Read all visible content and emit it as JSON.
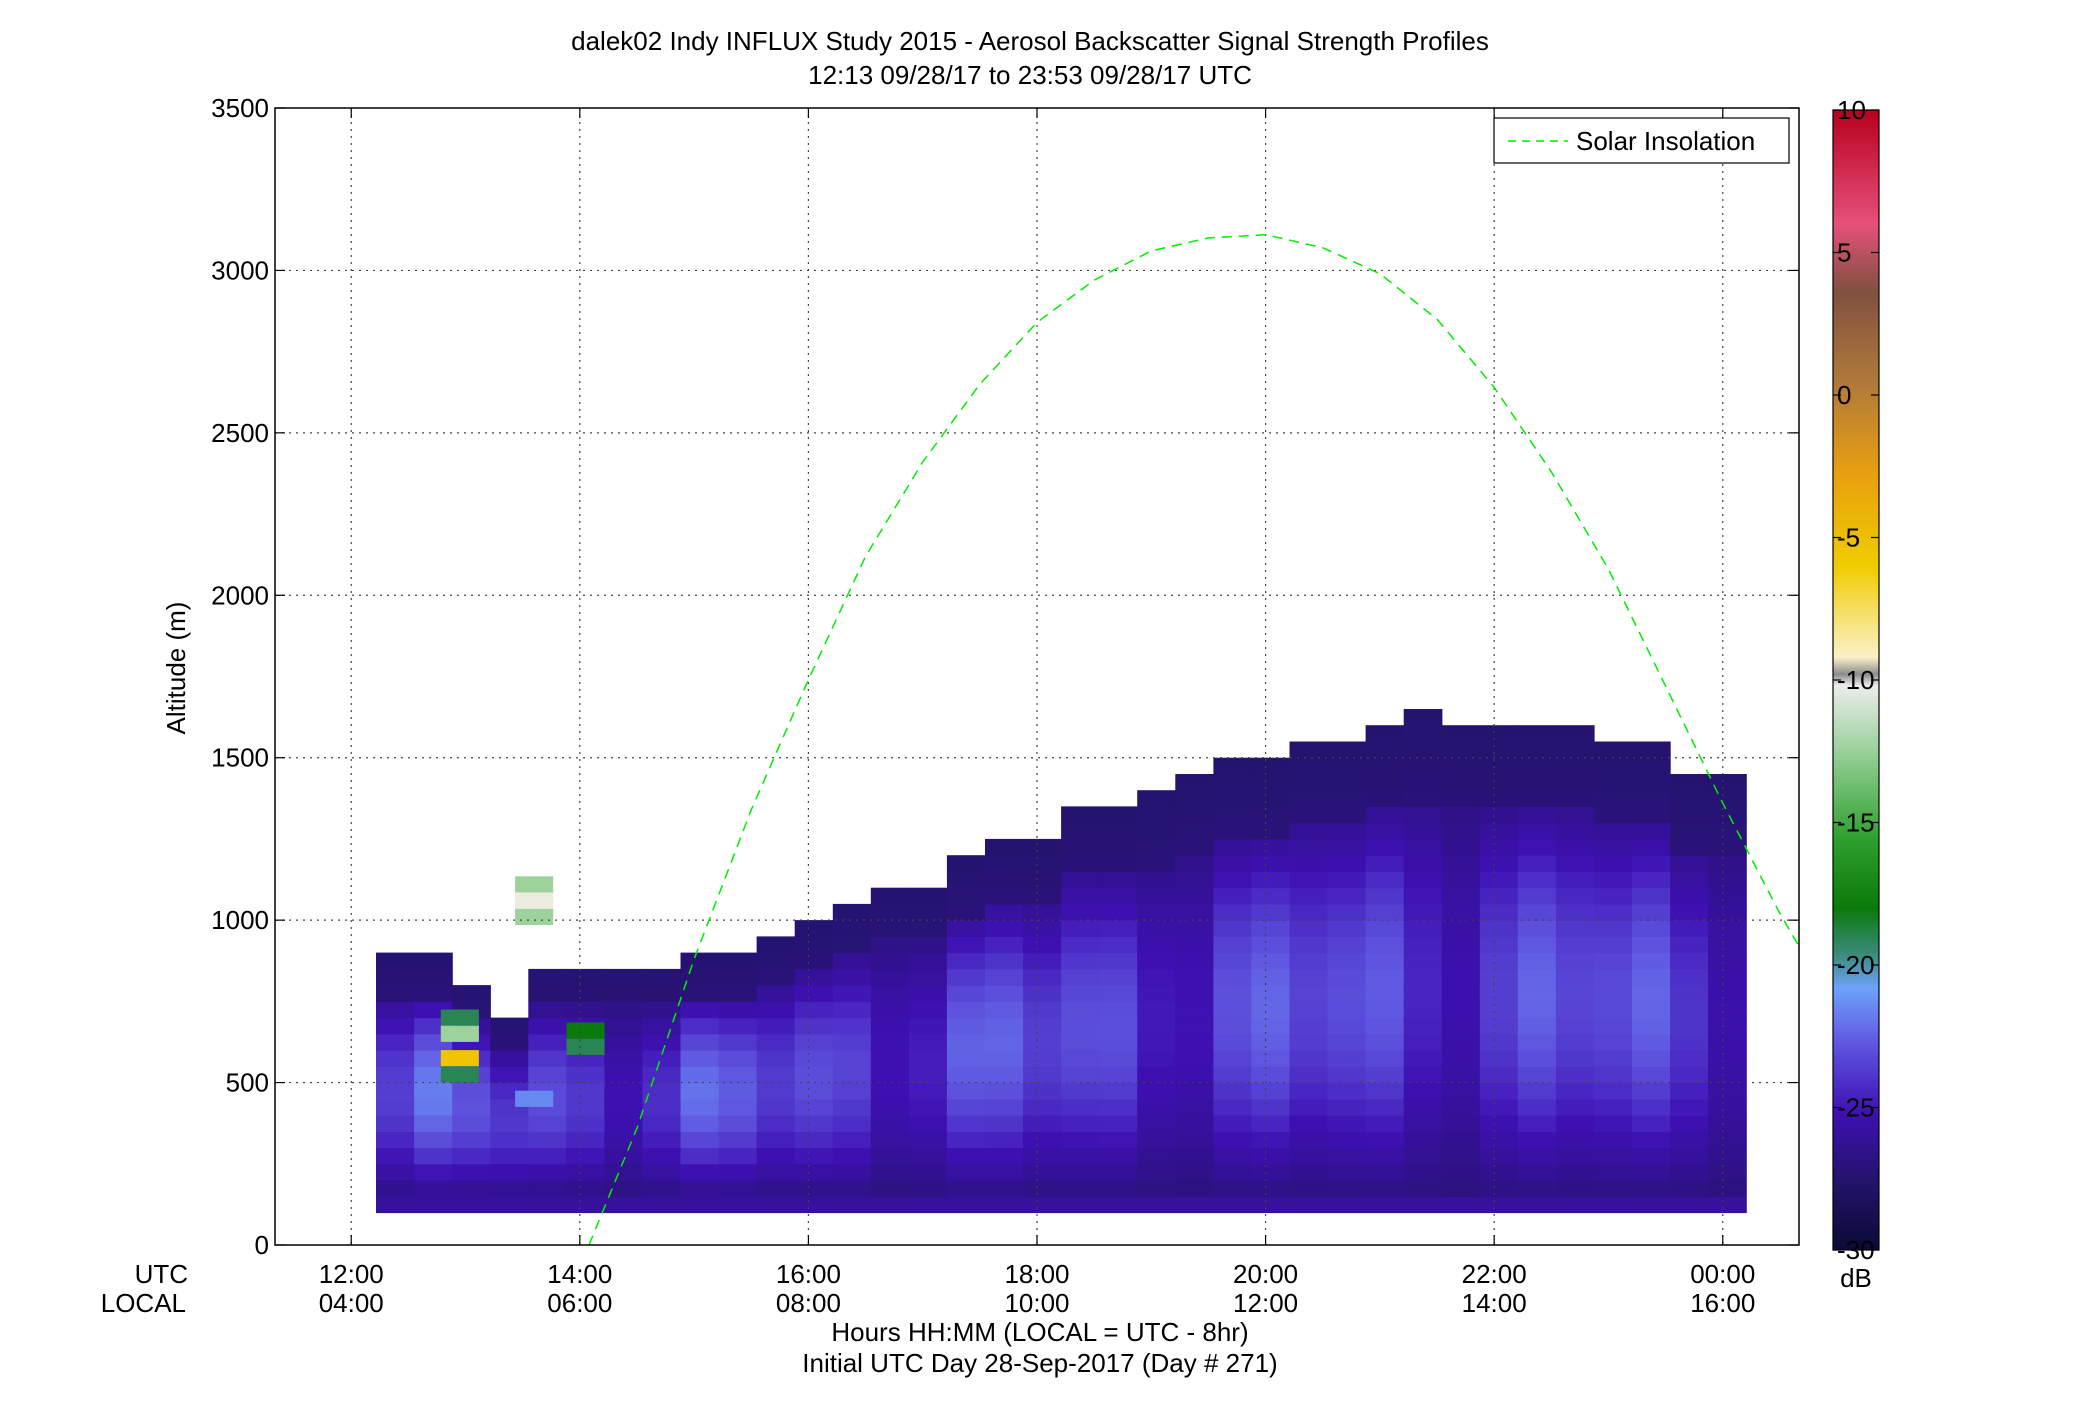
{
  "chart_data": {
    "type": "heatmap",
    "title": "dalek02 Indy INFLUX Study 2015 - Aerosol Backscatter Signal Strength Profiles",
    "subtitle": "12:13 09/28/17 to 23:53 09/28/17  UTC",
    "ylabel": "Altitude (m)",
    "xlabel": "Hours HH:MM  (LOCAL = UTC - 8hr)",
    "xlabel2": "Initial UTC Day 28-Sep-2017 (Day # 271)",
    "row_label_utc": "UTC",
    "row_label_local": "LOCAL",
    "xlim": [
      11.333,
      24.667
    ],
    "ylim": [
      0,
      3500
    ],
    "y_ticks": [
      0,
      500,
      1000,
      1500,
      2000,
      2500,
      3000,
      3500
    ],
    "x_ticks": [
      {
        "x": 12,
        "utc": "12:00",
        "local": "04:00"
      },
      {
        "x": 14,
        "utc": "14:00",
        "local": "06:00"
      },
      {
        "x": 16,
        "utc": "16:00",
        "local": "08:00"
      },
      {
        "x": 18,
        "utc": "18:00",
        "local": "10:00"
      },
      {
        "x": 20,
        "utc": "20:00",
        "local": "12:00"
      },
      {
        "x": 22,
        "utc": "22:00",
        "local": "14:00"
      },
      {
        "x": 24,
        "utc": "00:00",
        "local": "16:00"
      }
    ],
    "grid": true,
    "legend": {
      "position": "top-right",
      "entries": [
        {
          "name": "Solar Insolation",
          "color": "#00ee00",
          "style": "dashed"
        }
      ]
    },
    "colorbar": {
      "label": "dB",
      "range": [
        -30,
        10
      ],
      "ticks": [
        -30,
        -25,
        -20,
        -15,
        -10,
        -5,
        0,
        5,
        10
      ]
    },
    "bin_width_hours": 0.333,
    "bin_height_m": 50,
    "base_altitude_m": 100,
    "column_tops_m": [
      900,
      900,
      800,
      700,
      850,
      850,
      850,
      850,
      900,
      900,
      950,
      1000,
      1050,
      1100,
      1100,
      1200,
      1250,
      1250,
      1350,
      1350,
      1400,
      1450,
      1500,
      1500,
      1550,
      1550,
      1600,
      1650,
      1600,
      1600,
      1600,
      1600,
      1550,
      1550,
      1450,
      1450
    ],
    "column_start_hour": 12.217,
    "signal_low_db": -27,
    "signal_high_db": -22,
    "outliers": [
      {
        "x": 12.95,
        "y": 700,
        "db": -20
      },
      {
        "x": 12.95,
        "y": 650,
        "db": -13
      },
      {
        "x": 12.95,
        "y": 575,
        "db": -5
      },
      {
        "x": 12.95,
        "y": 525,
        "db": -20
      },
      {
        "x": 13.6,
        "y": 1110,
        "db": -13
      },
      {
        "x": 13.6,
        "y": 1060,
        "db": -10
      },
      {
        "x": 13.6,
        "y": 1010,
        "db": -13
      },
      {
        "x": 14.05,
        "y": 660,
        "db": -19
      },
      {
        "x": 14.05,
        "y": 610,
        "db": -20
      },
      {
        "x": 13.6,
        "y": 450,
        "db": -22
      }
    ],
    "solar_insolation": {
      "x": [
        14.08,
        14.5,
        15,
        15.5,
        16,
        16.5,
        17,
        17.5,
        18,
        18.5,
        19,
        19.5,
        20,
        20.5,
        21,
        21.5,
        22,
        22.5,
        23,
        23.5,
        24,
        24.5,
        24.667
      ],
      "y": [
        0,
        360,
        880,
        1340,
        1740,
        2120,
        2410,
        2650,
        2840,
        2970,
        3060,
        3100,
        3110,
        3070,
        2990,
        2850,
        2640,
        2380,
        2080,
        1720,
        1360,
        1020,
        920
      ]
    }
  }
}
